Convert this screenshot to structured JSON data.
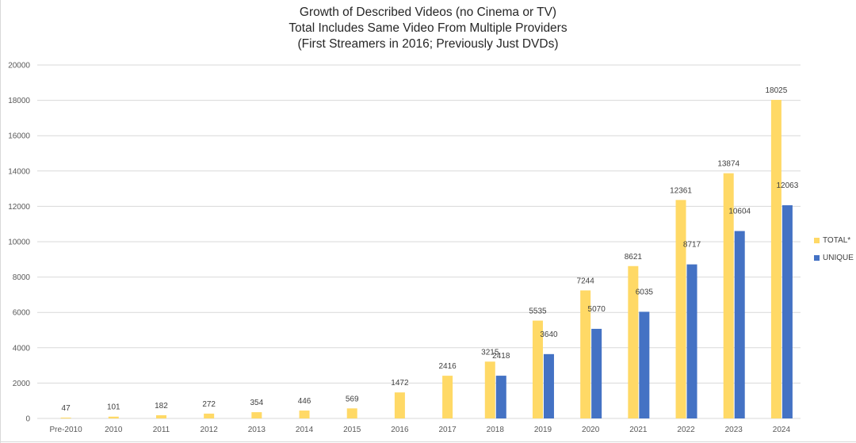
{
  "chart_data": {
    "type": "bar",
    "title_lines": [
      "Growth of Described Videos (no Cinema or TV)",
      "Total Includes Same Video From Multiple Providers",
      "(First Streamers in 2016; Previously Just DVDs)"
    ],
    "categories": [
      "Pre-2010",
      "2010",
      "2011",
      "2012",
      "2013",
      "2014",
      "2015",
      "2016",
      "2017",
      "2018",
      "2019",
      "2020",
      "2021",
      "2022",
      "2023",
      "2024"
    ],
    "series": [
      {
        "name": "TOTAL*",
        "color": "#FFD966",
        "values": [
          47,
          101,
          182,
          272,
          354,
          446,
          569,
          1472,
          2416,
          3215,
          5535,
          7244,
          8621,
          12361,
          13874,
          18025
        ]
      },
      {
        "name": "UNIQUE",
        "color": "#4472C4",
        "values": [
          null,
          null,
          null,
          null,
          null,
          null,
          null,
          null,
          null,
          2418,
          3640,
          5070,
          6035,
          8717,
          10604,
          12063
        ]
      }
    ],
    "yticks": [
      0,
      2000,
      4000,
      6000,
      8000,
      10000,
      12000,
      14000,
      16000,
      18000,
      20000
    ],
    "ylim": [
      0,
      20000
    ],
    "grid": true,
    "legend_position": "right"
  }
}
